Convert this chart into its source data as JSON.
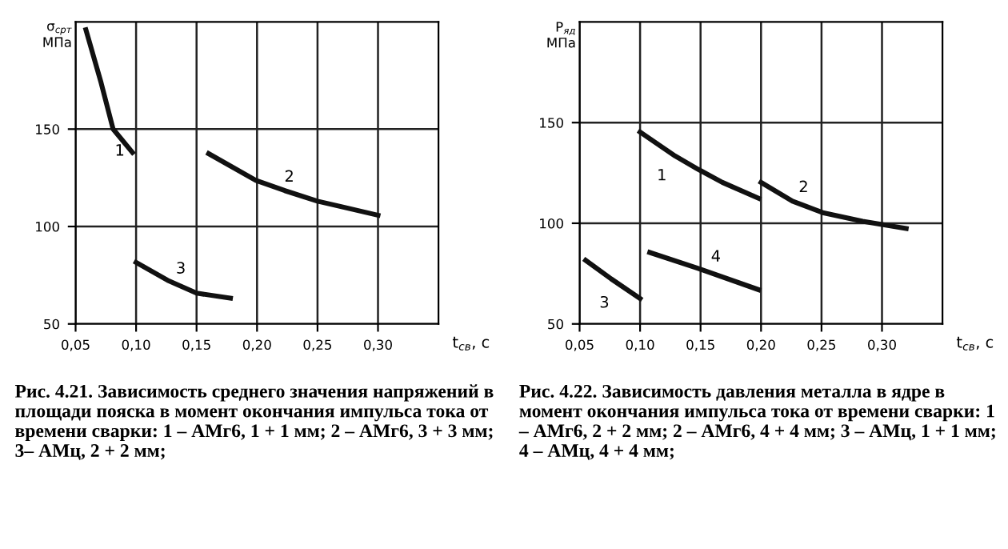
{
  "chart_data": [
    {
      "type": "line",
      "xlabel": "t$_{св}$, с",
      "ylabel": "σ$_{срт}$\nМПа",
      "series": [
        {
          "color": "#111111",
          "x": [
            0.0585,
            0.071,
            0.081,
            0.097
          ],
          "values": [
            201,
            174,
            150,
            138
          ]
        },
        {
          "color": "#111111",
          "x": [
            0.16,
            0.199,
            0.223,
            0.25,
            0.3
          ],
          "values": [
            137.4,
            123.7,
            118.4,
            113,
            105.8
          ]
        },
        {
          "color": "#111111",
          "x": [
            0.1,
            0.126,
            0.15,
            0.178
          ],
          "values": [
            81.6,
            72.4,
            65.8,
            63.2
          ]
        }
      ],
      "xlim": [
        0.05,
        0.35
      ],
      "ylim": [
        50,
        205
      ],
      "xticks": [
        {
          "value": 0.05,
          "label": "0,05"
        },
        {
          "value": 0.1,
          "label": "0,10"
        },
        {
          "value": 0.15,
          "label": "0,15"
        },
        {
          "value": 0.2,
          "label": "0,20"
        },
        {
          "value": 0.25,
          "label": "0,25"
        },
        {
          "value": 0.3,
          "label": "0,30"
        }
      ],
      "yticks": [
        50,
        100,
        150
      ],
      "grid": true,
      "legend": false,
      "marker": "none",
      "line_style": "solid",
      "annotations": [
        {
          "text": "1",
          "x": 0.081,
          "y": 150
        },
        {
          "text": "2",
          "x": 0.223,
          "y": 118.4
        },
        {
          "text": "3",
          "x": 0.126,
          "y": 72.4
        },
        "Рис. 4.21. Зависимость среднего значения напряжений в площади пояска в момент окончания импульса тока от времени сварки: 1 – АМг6, 1 + 1 мм; 2 – АМг6, 3 + 3 мм; 3– АМц, 2 + 2 мм;"
      ]
    },
    {
      "type": "line",
      "xlabel": "t$_{св}$, с",
      "ylabel": "P$_{яд}$\nМПа",
      "series": [
        {
          "color": "#111111",
          "x": [
            0.1,
            0.129,
            0.148,
            0.168,
            0.198
          ],
          "values": [
            145.3,
            133.4,
            126.8,
            120.3,
            112.4
          ]
        },
        {
          "color": "#111111",
          "x": [
            0.2,
            0.226,
            0.251,
            0.284,
            0.32
          ],
          "values": [
            120.3,
            111,
            105.3,
            101,
            97.4
          ]
        },
        {
          "color": "#111111",
          "x": [
            0.055,
            0.076,
            0.1
          ],
          "values": [
            81.6,
            72.4,
            62.6
          ]
        },
        {
          "color": "#111111",
          "x": [
            0.108,
            0.148,
            0.198
          ],
          "values": [
            85.5,
            77.6,
            67
          ]
        }
      ],
      "xlim": [
        0.05,
        0.35
      ],
      "ylim": [
        50,
        200
      ],
      "xticks": [
        {
          "value": 0.05,
          "label": "0,05"
        },
        {
          "value": 0.1,
          "label": "0,10"
        },
        {
          "value": 0.15,
          "label": "0,15"
        },
        {
          "value": 0.2,
          "label": "0,20"
        },
        {
          "value": 0.25,
          "label": "0,25"
        },
        {
          "value": 0.3,
          "label": "0,30"
        }
      ],
      "yticks": [
        50,
        100,
        150
      ],
      "grid": true,
      "legend": false,
      "marker": "none",
      "line_style": "solid",
      "annotations": [
        {
          "text": "1",
          "x": 0.129,
          "y": 133.4
        },
        {
          "text": "2",
          "x": 0.226,
          "y": 111
        },
        {
          "text": "3",
          "x": 0.076,
          "y": 72.4
        },
        {
          "text": "4",
          "x": 0.148,
          "y": 77.6
        },
        "Рис. 4.22. Зависимость давления металла в ядре в момент окончания импульса тока от времени сварки: 1 – АМг6, 2 + 2 мм; 2 – АМг6, 4 + 4 мм; 3 – АМц, 1 + 1 мм; 4 – АМц, 4 + 4 мм;"
      ]
    }
  ]
}
